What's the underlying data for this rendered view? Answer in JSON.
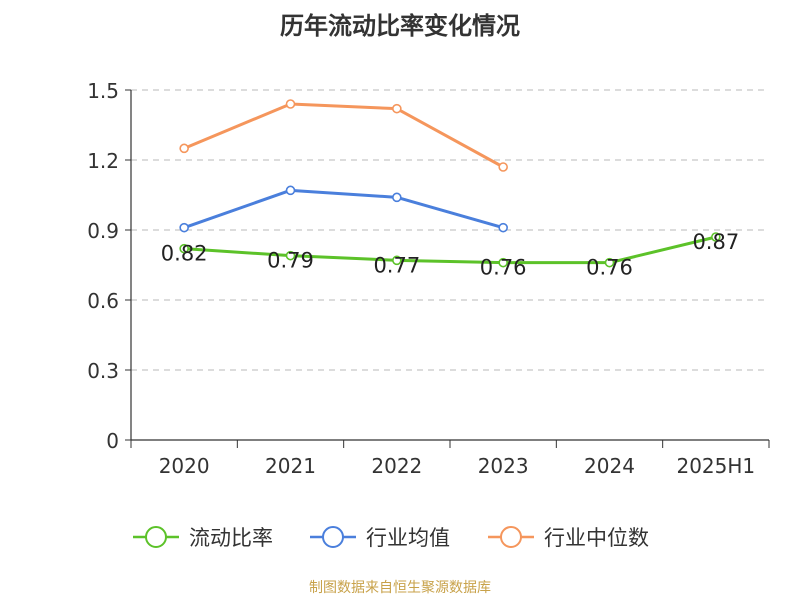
{
  "chart_data": {
    "type": "line",
    "title": "历年流动比率变化情况",
    "categories": [
      "2020",
      "2021",
      "2022",
      "2023",
      "2024",
      "2025H1"
    ],
    "ylim": [
      0,
      1.5
    ],
    "yticks": [
      "0",
      "0.3",
      "0.6",
      "0.9",
      "1.2",
      "1.5"
    ],
    "grid": true,
    "legend_position": "bottom",
    "series": [
      {
        "name": "流动比率",
        "color": "#5cc229",
        "values": [
          0.82,
          0.79,
          0.77,
          0.76,
          0.76,
          0.87
        ],
        "labels": [
          "0.82",
          "0.79",
          "0.77",
          "0.76",
          "0.76",
          "0.87"
        ]
      },
      {
        "name": "行业均值",
        "color": "#4a7fdc",
        "values": [
          0.91,
          1.07,
          1.04,
          0.91,
          null,
          null
        ]
      },
      {
        "name": "行业中位数",
        "color": "#f5965c",
        "values": [
          1.25,
          1.44,
          1.42,
          1.17,
          null,
          null
        ]
      }
    ]
  },
  "footer": {
    "source": "制图数据来自恒生聚源数据库"
  }
}
